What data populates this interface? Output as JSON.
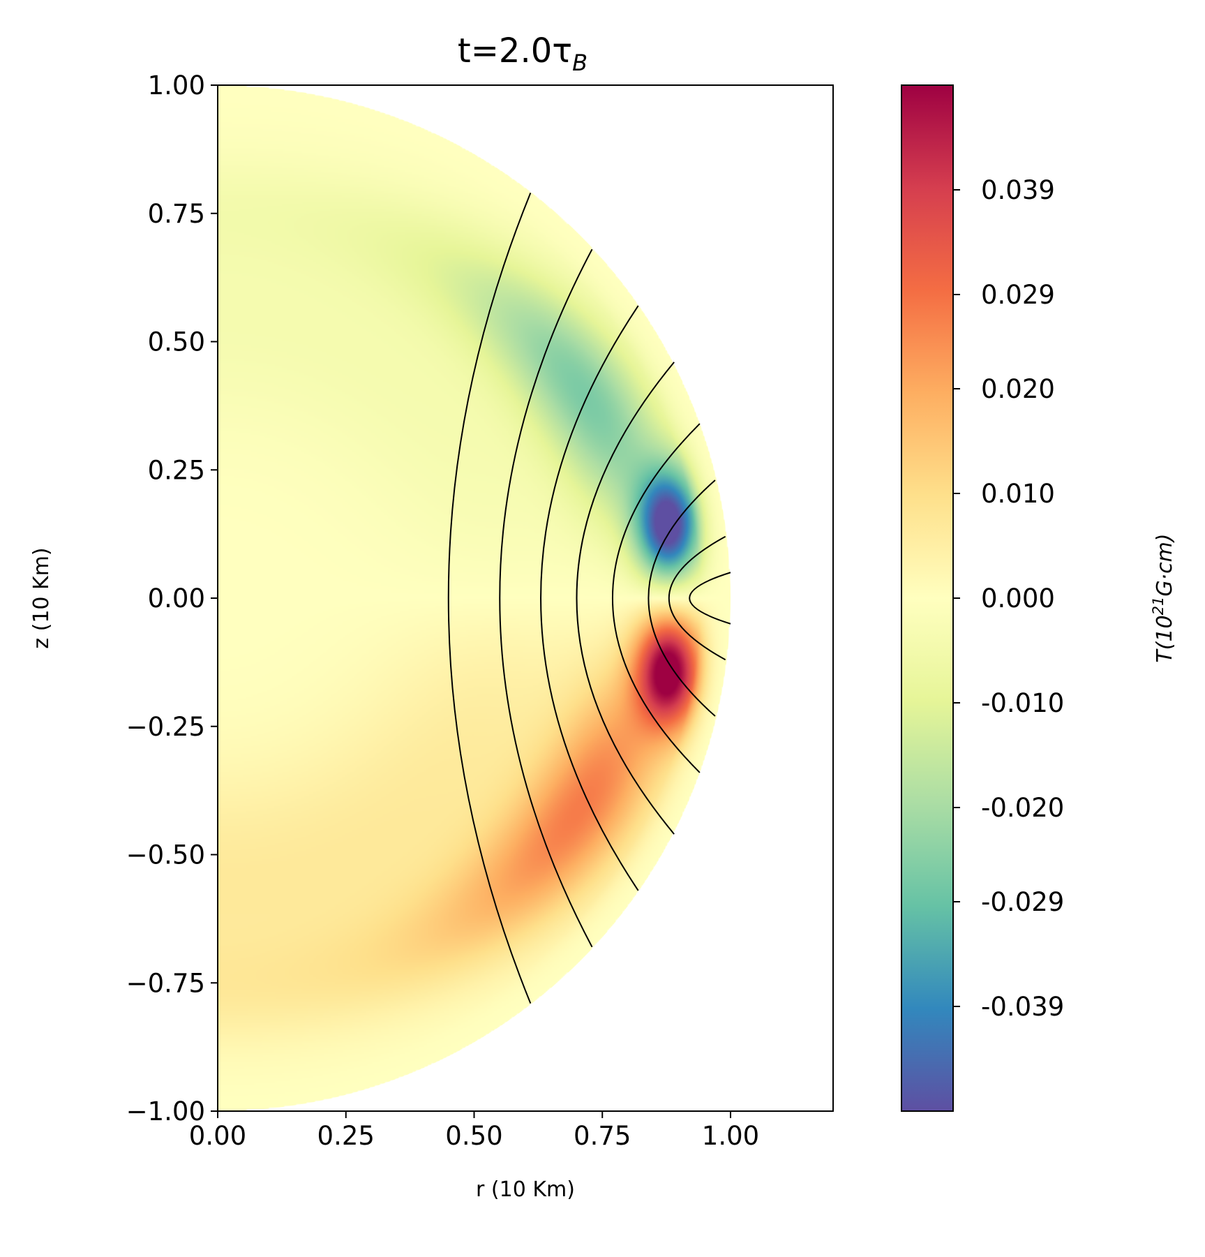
{
  "chart_data": {
    "type": "heatmap",
    "title_main": "t=2.0τ",
    "title_sub": "B",
    "xlabel": "r (10 Km)",
    "ylabel": "z (10 Km)",
    "xlim": [
      0.0,
      1.2
    ],
    "ylim": [
      -1.0,
      1.0
    ],
    "x_ticks": [
      0.0,
      0.25,
      0.5,
      0.75,
      1.0
    ],
    "x_tick_labels": [
      "0.00",
      "0.25",
      "0.50",
      "0.75",
      "1.00"
    ],
    "y_ticks": [
      1.0,
      0.75,
      0.5,
      0.25,
      0.0,
      -0.25,
      -0.5,
      -0.75,
      -1.0
    ],
    "y_tick_labels": [
      "1.00",
      "0.75",
      "0.50",
      "0.25",
      "0.00",
      "−0.25",
      "−0.50",
      "−0.75",
      "−1.00"
    ],
    "colormap": "Spectral_r",
    "colorbar": {
      "label_main": "T(10",
      "label_sup": "21",
      "label_rest": "G·cm)",
      "vmin": -0.049,
      "vmax": 0.049,
      "ticks": [
        0.039,
        0.029,
        0.02,
        0.01,
        0.0,
        -0.01,
        -0.02,
        -0.029,
        -0.039
      ],
      "tick_labels": [
        "0.039",
        "0.029",
        "0.020",
        "0.010",
        "0.000",
        "-0.010",
        "-0.020",
        "-0.029",
        "-0.039"
      ]
    },
    "field": {
      "domain": "half-disk of radius 1 (r ≥ 0)",
      "peak_negative": {
        "r": 0.88,
        "z": 0.14,
        "value": -0.049
      },
      "peak_positive": {
        "r": 0.88,
        "z": -0.14,
        "value": 0.049
      }
    },
    "contour_lines": [
      {
        "r_equator": 0.45,
        "r_end": 0.61,
        "z_end": 0.79
      },
      {
        "r_equator": 0.55,
        "r_end": 0.73,
        "z_end": 0.68
      },
      {
        "r_equator": 0.63,
        "r_end": 0.82,
        "z_end": 0.57
      },
      {
        "r_equator": 0.7,
        "r_end": 0.89,
        "z_end": 0.46
      },
      {
        "r_equator": 0.77,
        "r_end": 0.94,
        "z_end": 0.34
      },
      {
        "r_equator": 0.84,
        "r_end": 0.97,
        "z_end": 0.23
      },
      {
        "r_equator": 0.88,
        "r_end": 0.99,
        "z_end": 0.12
      },
      {
        "r_equator": 0.92,
        "r_end": 1.0,
        "z_end": 0.05
      }
    ],
    "grid": false,
    "legend": "none"
  }
}
